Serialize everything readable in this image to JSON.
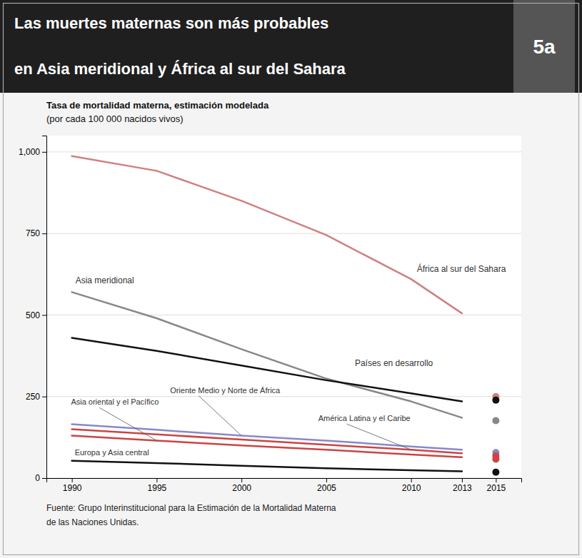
{
  "chart_data": {
    "type": "line",
    "title": [
      "Las muertes maternas son más probables",
      "en Asia meridional y África al sur del Sahara"
    ],
    "badge": "5a",
    "subtitle": [
      "Tasa de mortalidad materna, estimación modelada",
      "(por cada 100 000 nacidos vivos)"
    ],
    "source": [
      "Fuente: Grupo Interinstitucional para la Estimación de la Mortalidad Materna",
      "de las Naciones Unidas."
    ],
    "x": [
      1990,
      1995,
      2000,
      2005,
      2010,
      2013
    ],
    "series": [
      {
        "name": "África al sur del Sahara",
        "type": "line",
        "color": "#d08080",
        "values": [
          987,
          942,
          850,
          745,
          610,
          505
        ]
      },
      {
        "name": "Asia meridional",
        "type": "line",
        "color": "#888888",
        "values": [
          570,
          490,
          395,
          305,
          235,
          185
        ]
      },
      {
        "name": "Países en desarrollo",
        "type": "line",
        "color": "#111111",
        "values": [
          430,
          390,
          345,
          300,
          260,
          235
        ]
      },
      {
        "name": "Oriente Medio y Norte de África",
        "type": "line",
        "color": "#8888cc",
        "values": [
          165,
          148,
          130,
          115,
          97,
          87
        ]
      },
      {
        "name": "América Latina y el Caribe",
        "type": "line",
        "color": "#cc4444",
        "values": [
          150,
          134,
          118,
          102,
          87,
          76
        ]
      },
      {
        "name": "Asia oriental y el Pacífico",
        "type": "line",
        "color": "#cc4444",
        "values": [
          130,
          115,
          100,
          87,
          72,
          64
        ]
      },
      {
        "name": "Europa y Asia central",
        "type": "line",
        "color": "#111111",
        "values": [
          53,
          46,
          38,
          30,
          24,
          21
        ]
      },
      {
        "type": "scatter",
        "marker": "circle",
        "color": "#d08080",
        "x": [
          2015
        ],
        "values": [
          250
        ]
      },
      {
        "type": "scatter",
        "marker": "circle",
        "color": "#888888",
        "x": [
          2015
        ],
        "values": [
          176
        ]
      },
      {
        "type": "scatter",
        "marker": "circle",
        "color": "#111111",
        "x": [
          2015
        ],
        "values": [
          239
        ]
      },
      {
        "type": "scatter",
        "marker": "circle",
        "color": "#8888cc",
        "x": [
          2015
        ],
        "values": [
          78
        ]
      },
      {
        "type": "scatter",
        "marker": "circle",
        "color": "#cc4444",
        "x": [
          2015
        ],
        "values": [
          68
        ]
      },
      {
        "type": "scatter",
        "marker": "circle",
        "color": "#cc4444",
        "x": [
          2015
        ],
        "values": [
          58
        ]
      },
      {
        "type": "scatter",
        "marker": "circle",
        "color": "#111111",
        "x": [
          2015
        ],
        "values": [
          18
        ]
      }
    ],
    "xlim": [
      1988.5,
      2016.5
    ],
    "xticks": [
      1990,
      1995,
      2000,
      2005,
      2010,
      2013,
      2015
    ],
    "ylim": [
      0,
      1050
    ],
    "yticks": [
      0,
      250,
      500,
      750,
      {
        "value": 1000,
        "label": "1,000"
      }
    ],
    "grid": true
  }
}
